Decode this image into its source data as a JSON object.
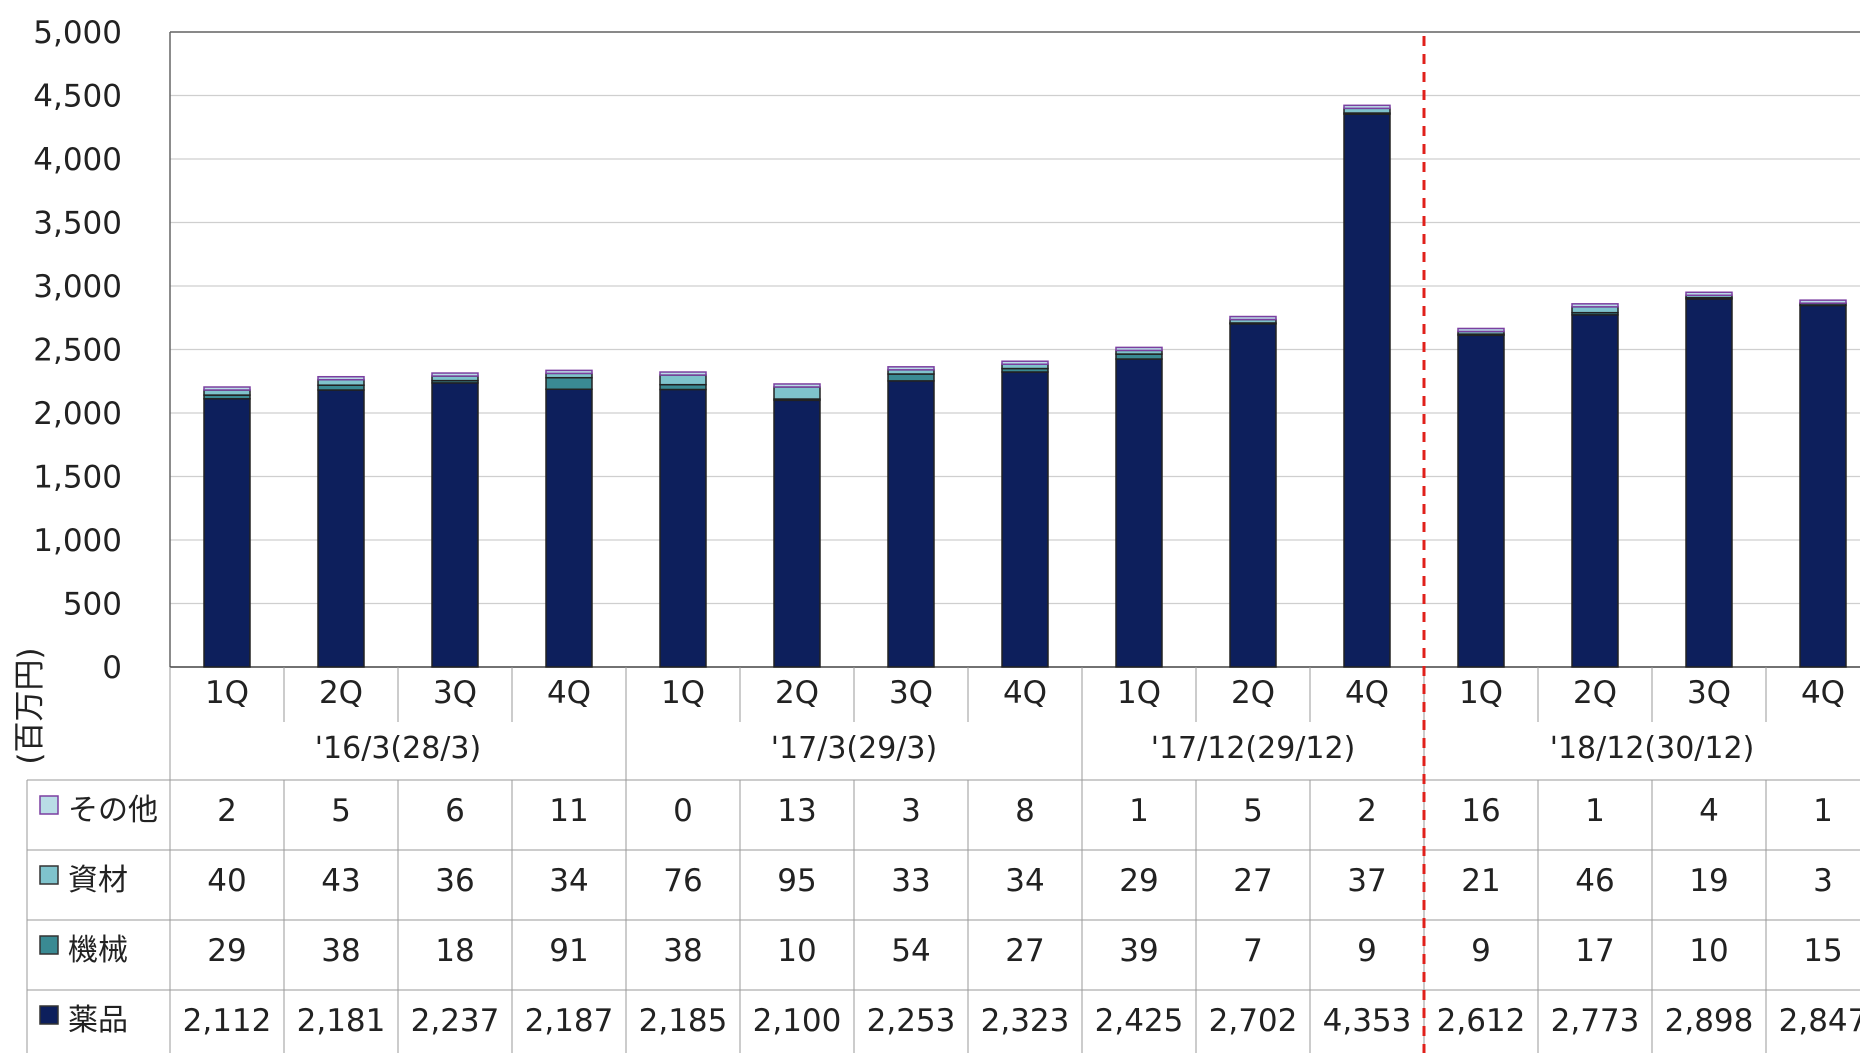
{
  "chart_data": {
    "type": "bar",
    "stacked": true,
    "ylabel": "(百万円)",
    "ylim": [
      0,
      5000
    ],
    "yticks": [
      "0",
      "500",
      "1,000",
      "1,500",
      "2,000",
      "2,500",
      "3,000",
      "3,500",
      "4,000",
      "4,500",
      "5,000"
    ],
    "grid": true,
    "periods": [
      {
        "label": "'16/3(28/3)",
        "quarters": [
          "1Q",
          "2Q",
          "3Q",
          "4Q"
        ]
      },
      {
        "label": "'17/3(29/3)",
        "quarters": [
          "1Q",
          "2Q",
          "3Q",
          "4Q"
        ]
      },
      {
        "label": "'17/12(29/12)",
        "quarters": [
          "1Q",
          "2Q",
          "4Q"
        ]
      },
      {
        "label": "'18/12(30/12)",
        "quarters": [
          "1Q",
          "2Q",
          "3Q",
          "4Q"
        ]
      }
    ],
    "categories": [
      "1Q",
      "2Q",
      "3Q",
      "4Q",
      "1Q",
      "2Q",
      "3Q",
      "4Q",
      "1Q",
      "2Q",
      "4Q",
      "1Q",
      "2Q",
      "3Q",
      "4Q"
    ],
    "series": [
      {
        "name": "薬品",
        "color": "#0d1f5c",
        "values": [
          2112,
          2181,
          2237,
          2187,
          2185,
          2100,
          2253,
          2323,
          2425,
          2702,
          4353,
          2612,
          2773,
          2898,
          2847
        ],
        "labels": [
          "2,112",
          "2,181",
          "2,237",
          "2,187",
          "2,185",
          "2,100",
          "2,253",
          "2,323",
          "2,425",
          "2,702",
          "4,353",
          "2,612",
          "2,773",
          "2,898",
          "2,847"
        ]
      },
      {
        "name": "機械",
        "color": "#3a8a93",
        "values": [
          29,
          38,
          18,
          91,
          38,
          10,
          54,
          27,
          39,
          7,
          9,
          9,
          17,
          10,
          15
        ],
        "labels": [
          "29",
          "38",
          "18",
          "91",
          "38",
          "10",
          "54",
          "27",
          "39",
          "7",
          "9",
          "9",
          "17",
          "10",
          "15"
        ]
      },
      {
        "name": "資材",
        "color": "#7fc3cc",
        "values": [
          40,
          43,
          36,
          34,
          76,
          95,
          33,
          34,
          29,
          27,
          37,
          21,
          46,
          19,
          3
        ],
        "labels": [
          "40",
          "43",
          "36",
          "34",
          "76",
          "95",
          "33",
          "34",
          "29",
          "27",
          "37",
          "21",
          "46",
          "19",
          "3"
        ]
      },
      {
        "name": "その他",
        "color": "#b9dde6",
        "edge": "#7b3fa0",
        "values": [
          2,
          5,
          6,
          11,
          0,
          13,
          3,
          8,
          1,
          5,
          2,
          16,
          1,
          4,
          1
        ],
        "labels": [
          "2",
          "5",
          "6",
          "11",
          "0",
          "13",
          "3",
          "8",
          "1",
          "5",
          "2",
          "16",
          "1",
          "4",
          "1"
        ]
      }
    ],
    "legend_placement": "left of data table",
    "table_row_order": [
      "その他",
      "資材",
      "機械",
      "薬品"
    ],
    "reference_line": {
      "type": "vertical-dashed",
      "color": "#e0201b",
      "between_categories": [
        10,
        11
      ]
    }
  }
}
